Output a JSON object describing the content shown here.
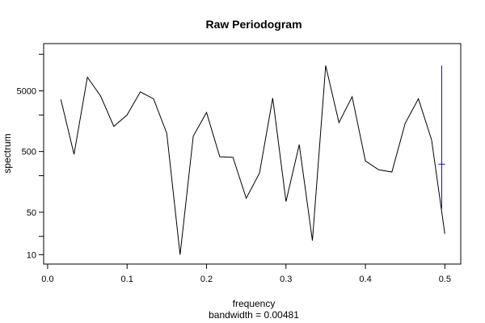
{
  "chart_data": {
    "type": "line",
    "title": "Raw Periodogram",
    "xlabel": "frequency",
    "xlabel_sub": "bandwidth = 0.00481",
    "ylabel": "spectrum",
    "y_scale": "log",
    "xlim": [
      -0.005,
      0.52
    ],
    "ylim": [
      7,
      30000
    ],
    "x_ticks": [
      {
        "value": 0.0,
        "label": "0.0"
      },
      {
        "value": 0.1,
        "label": "0.1"
      },
      {
        "value": 0.2,
        "label": "0.2"
      },
      {
        "value": 0.3,
        "label": "0.3"
      },
      {
        "value": 0.4,
        "label": "0.4"
      },
      {
        "value": 0.5,
        "label": "0.5"
      }
    ],
    "y_ticks": [
      {
        "value": 10,
        "label": "10"
      },
      {
        "value": 20,
        "label": ""
      },
      {
        "value": 50,
        "label": "50"
      },
      {
        "value": 200,
        "label": ""
      },
      {
        "value": 500,
        "label": "500"
      },
      {
        "value": 2000,
        "label": ""
      },
      {
        "value": 5000,
        "label": "5000"
      },
      {
        "value": 20000,
        "label": ""
      }
    ],
    "series": [
      {
        "color": "#000000",
        "x": [
          0.0167,
          0.0333,
          0.05,
          0.0667,
          0.0833,
          0.1,
          0.1167,
          0.1333,
          0.15,
          0.1667,
          0.1833,
          0.2,
          0.2167,
          0.2333,
          0.25,
          0.2667,
          0.2833,
          0.3,
          0.3167,
          0.3333,
          0.35,
          0.3667,
          0.3833,
          0.4,
          0.4167,
          0.4333,
          0.45,
          0.4667,
          0.4833,
          0.5
        ],
        "y": [
          3600,
          450,
          8400,
          4100,
          1300,
          2000,
          4800,
          3700,
          1000,
          10,
          900,
          2200,
          410,
          400,
          85,
          220,
          3800,
          75,
          650,
          17,
          13000,
          1500,
          4000,
          350,
          250,
          230,
          1450,
          3700,
          780,
          22
        ]
      }
    ],
    "confidence_bar": {
      "color": "#0000ff",
      "x": 0.496,
      "center": 310,
      "lower": 57,
      "upper": 13000
    },
    "grid": false,
    "legend": "none"
  }
}
